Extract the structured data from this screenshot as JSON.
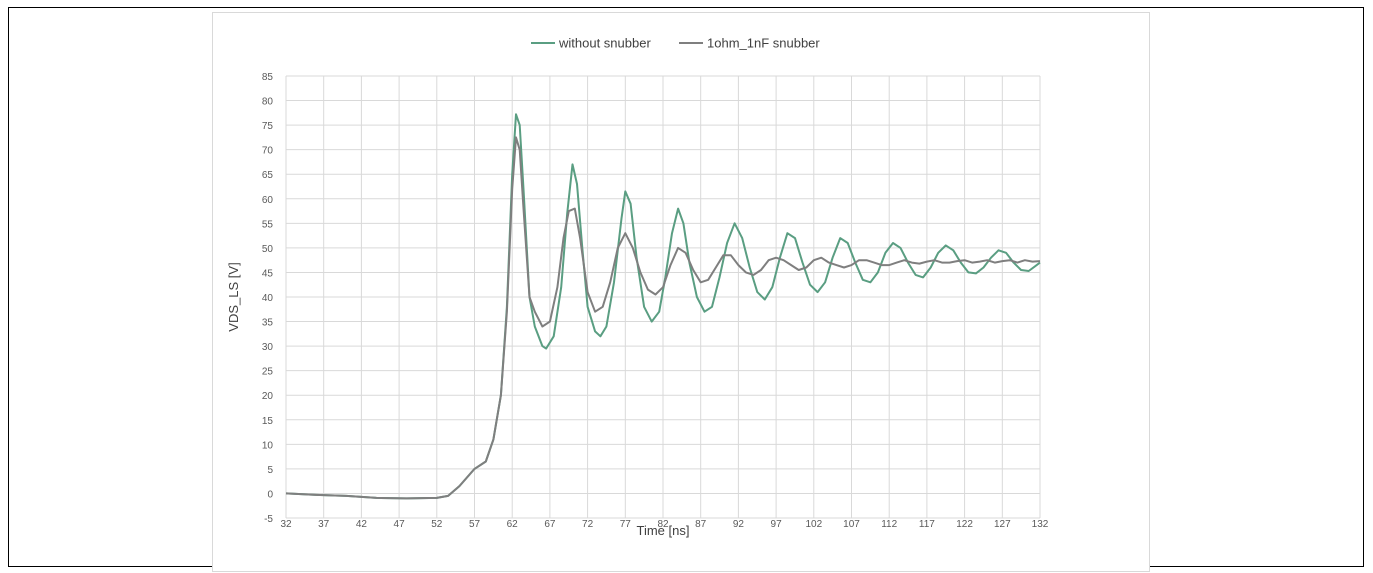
{
  "chart_data": {
    "type": "line",
    "title": "",
    "xlabel": "Time [ns]",
    "ylabel": "VDS_LS [V]",
    "xlim": [
      32,
      132
    ],
    "ylim": [
      -5,
      85
    ],
    "x_ticks": [
      32,
      37,
      42,
      47,
      52,
      57,
      62,
      67,
      72,
      77,
      82,
      87,
      92,
      97,
      102,
      107,
      112,
      117,
      122,
      127,
      132
    ],
    "y_ticks": [
      -5,
      0,
      5,
      10,
      15,
      20,
      25,
      30,
      35,
      40,
      45,
      50,
      55,
      60,
      65,
      70,
      75,
      80,
      85
    ],
    "grid": true,
    "legend_position": "top",
    "series": [
      {
        "name": "without snubber",
        "color": "#5a9e82",
        "points": [
          [
            32,
            0
          ],
          [
            36,
            -0.3
          ],
          [
            40,
            -0.5
          ],
          [
            44,
            -0.9
          ],
          [
            48,
            -1
          ],
          [
            52,
            -0.9
          ],
          [
            53.5,
            -0.5
          ],
          [
            55,
            1.5
          ],
          [
            57,
            5
          ],
          [
            58.5,
            6.5
          ],
          [
            59.5,
            11
          ],
          [
            60.5,
            20
          ],
          [
            61.3,
            38
          ],
          [
            62,
            65
          ],
          [
            62.5,
            77.2
          ],
          [
            63,
            75
          ],
          [
            63.5,
            62
          ],
          [
            64.3,
            40
          ],
          [
            65,
            34
          ],
          [
            66,
            30
          ],
          [
            66.5,
            29.5
          ],
          [
            67.5,
            32
          ],
          [
            68.5,
            42
          ],
          [
            69.3,
            57
          ],
          [
            70,
            67
          ],
          [
            70.6,
            63
          ],
          [
            71.3,
            50
          ],
          [
            72,
            38
          ],
          [
            73,
            33
          ],
          [
            73.7,
            32
          ],
          [
            74.5,
            34
          ],
          [
            75.5,
            43
          ],
          [
            76.5,
            56
          ],
          [
            77,
            61.5
          ],
          [
            77.7,
            59
          ],
          [
            78.5,
            48
          ],
          [
            79.5,
            38
          ],
          [
            80.5,
            35
          ],
          [
            81.5,
            37
          ],
          [
            82.3,
            44
          ],
          [
            83.2,
            53
          ],
          [
            84,
            58
          ],
          [
            84.7,
            55
          ],
          [
            85.5,
            47
          ],
          [
            86.5,
            40
          ],
          [
            87.5,
            37
          ],
          [
            88.5,
            38
          ],
          [
            89.5,
            44
          ],
          [
            90.5,
            51
          ],
          [
            91.5,
            55
          ],
          [
            92.5,
            52
          ],
          [
            93.5,
            46
          ],
          [
            94.5,
            41
          ],
          [
            95.5,
            39.5
          ],
          [
            96.5,
            42
          ],
          [
            97.5,
            48
          ],
          [
            98.5,
            53
          ],
          [
            99.5,
            52
          ],
          [
            100.5,
            47
          ],
          [
            101.5,
            42.5
          ],
          [
            102.5,
            41
          ],
          [
            103.5,
            43
          ],
          [
            104.5,
            48
          ],
          [
            105.5,
            52
          ],
          [
            106.5,
            51
          ],
          [
            107.5,
            47
          ],
          [
            108.5,
            43.5
          ],
          [
            109.5,
            43
          ],
          [
            110.5,
            45
          ],
          [
            111.5,
            49
          ],
          [
            112.5,
            51
          ],
          [
            113.5,
            50
          ],
          [
            114.5,
            47
          ],
          [
            115.5,
            44.5
          ],
          [
            116.5,
            44
          ],
          [
            117.5,
            46
          ],
          [
            118.5,
            49
          ],
          [
            119.5,
            50.5
          ],
          [
            120.5,
            49.5
          ],
          [
            121.5,
            47
          ],
          [
            122.5,
            45
          ],
          [
            123.5,
            44.8
          ],
          [
            124.5,
            46
          ],
          [
            125.5,
            48
          ],
          [
            126.5,
            49.5
          ],
          [
            127.5,
            49
          ],
          [
            128.5,
            47
          ],
          [
            129.5,
            45.5
          ],
          [
            130.5,
            45.3
          ],
          [
            131.3,
            46.2
          ],
          [
            132,
            47
          ]
        ]
      },
      {
        "name": "1ohm_1nF snubber",
        "color": "#7f7f7f",
        "points": [
          [
            32,
            0
          ],
          [
            36,
            -0.3
          ],
          [
            40,
            -0.5
          ],
          [
            44,
            -0.9
          ],
          [
            48,
            -1
          ],
          [
            52,
            -0.9
          ],
          [
            53.5,
            -0.5
          ],
          [
            55,
            1.5
          ],
          [
            57,
            5
          ],
          [
            58.5,
            6.5
          ],
          [
            59.5,
            11
          ],
          [
            60.5,
            20
          ],
          [
            61.3,
            37
          ],
          [
            62,
            62
          ],
          [
            62.5,
            72.5
          ],
          [
            63,
            70
          ],
          [
            63.5,
            58
          ],
          [
            64.3,
            40
          ],
          [
            65,
            37
          ],
          [
            66,
            34
          ],
          [
            67,
            35
          ],
          [
            68,
            42
          ],
          [
            68.8,
            52
          ],
          [
            69.5,
            57.5
          ],
          [
            70.3,
            58
          ],
          [
            71,
            52
          ],
          [
            72,
            41
          ],
          [
            73,
            37
          ],
          [
            74,
            38
          ],
          [
            75,
            43
          ],
          [
            76,
            50
          ],
          [
            77,
            53
          ],
          [
            78,
            50
          ],
          [
            79,
            45
          ],
          [
            80,
            41.5
          ],
          [
            81,
            40.5
          ],
          [
            82,
            42
          ],
          [
            83,
            46.5
          ],
          [
            84,
            50
          ],
          [
            85,
            49
          ],
          [
            86,
            45.5
          ],
          [
            87,
            43
          ],
          [
            88,
            43.5
          ],
          [
            89,
            46
          ],
          [
            90,
            48.5
          ],
          [
            91,
            48.5
          ],
          [
            92,
            46.5
          ],
          [
            93,
            45
          ],
          [
            94,
            44.5
          ],
          [
            95,
            45.5
          ],
          [
            96,
            47.5
          ],
          [
            97,
            48
          ],
          [
            98,
            47.5
          ],
          [
            99,
            46.5
          ],
          [
            100,
            45.5
          ],
          [
            101,
            46
          ],
          [
            102,
            47.5
          ],
          [
            103,
            48
          ],
          [
            104,
            47
          ],
          [
            105,
            46.5
          ],
          [
            106,
            46
          ],
          [
            107,
            46.5
          ],
          [
            108,
            47.5
          ],
          [
            109,
            47.5
          ],
          [
            110,
            47
          ],
          [
            111,
            46.5
          ],
          [
            112,
            46.5
          ],
          [
            113,
            47
          ],
          [
            114,
            47.5
          ],
          [
            115,
            47
          ],
          [
            116,
            46.8
          ],
          [
            117,
            47.2
          ],
          [
            118,
            47.5
          ],
          [
            119,
            47
          ],
          [
            120,
            47
          ],
          [
            121,
            47.3
          ],
          [
            122,
            47.5
          ],
          [
            123,
            47
          ],
          [
            124,
            47.2
          ],
          [
            125,
            47.5
          ],
          [
            126,
            47
          ],
          [
            127,
            47.3
          ],
          [
            128,
            47.5
          ],
          [
            129,
            47
          ],
          [
            130,
            47.5
          ],
          [
            131,
            47.2
          ],
          [
            132,
            47.3
          ]
        ]
      }
    ]
  }
}
